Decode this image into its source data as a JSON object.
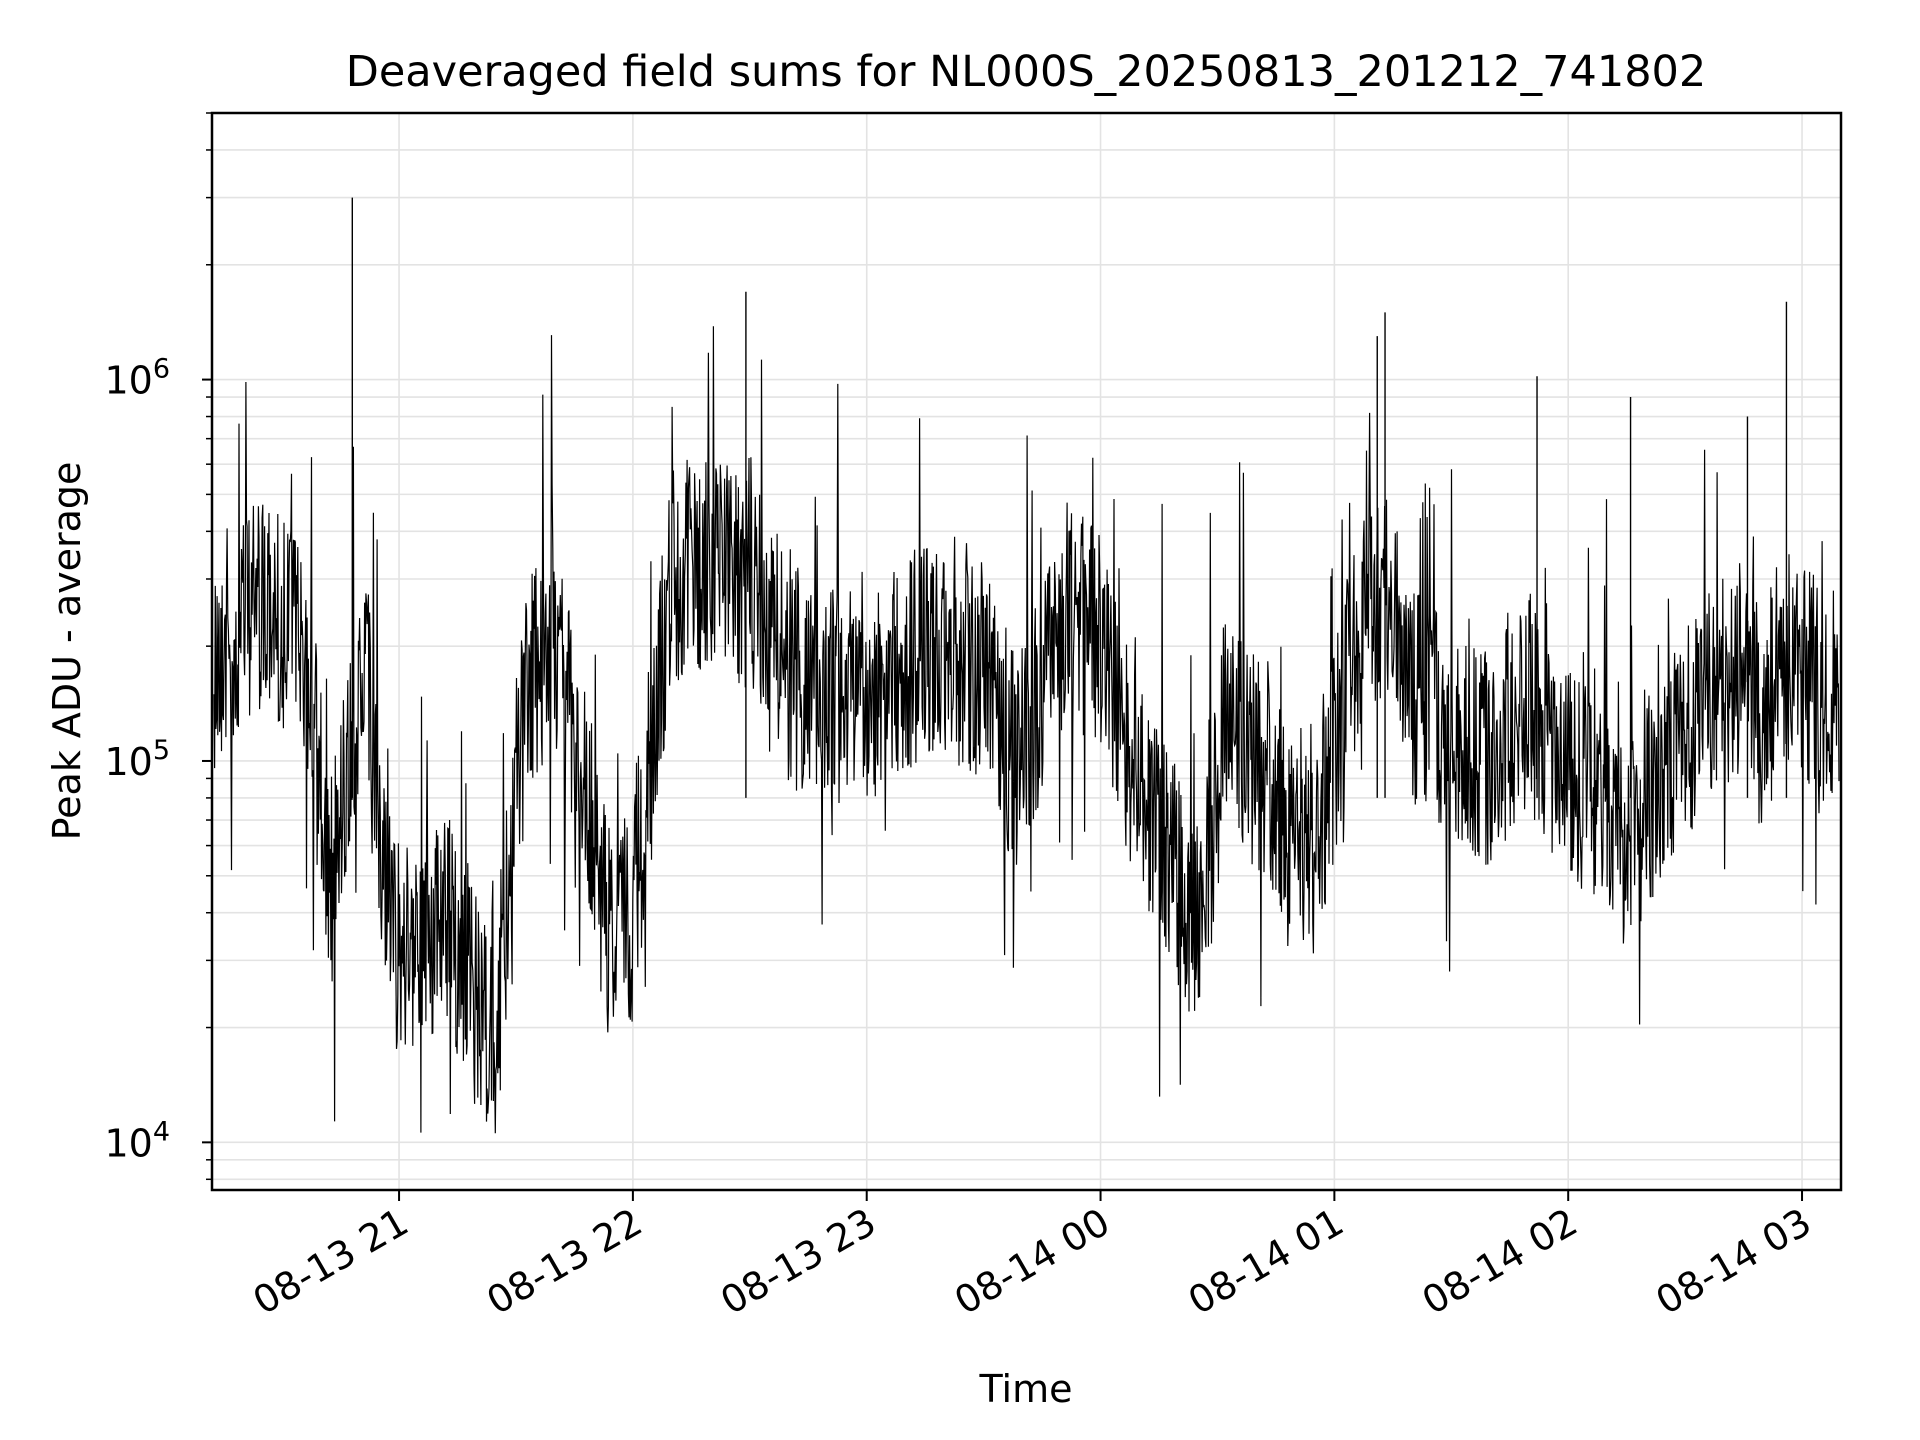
{
  "chart_data": {
    "type": "line",
    "title": "Deaveraged field sums for NL000S_20250813_201212_741802",
    "xlabel": "Time",
    "ylabel": "Peak ADU - average",
    "yscale": "log",
    "ylim": [
      7500,
      5000000
    ],
    "xlim": [
      "2025-08-13 20:12",
      "2025-08-14 03:10"
    ],
    "xticks": [
      "08-13 21",
      "08-13 22",
      "08-13 23",
      "08-14 00",
      "08-14 01",
      "08-14 02",
      "08-14 03"
    ],
    "yticks": [
      {
        "base": "10",
        "exp": "4",
        "value": 10000
      },
      {
        "base": "10",
        "exp": "5",
        "value": 100000
      },
      {
        "base": "10",
        "exp": "6",
        "value": 1000000
      }
    ],
    "grid": true,
    "line_color": "#000000",
    "grid_color": "#e3e3e3",
    "series": [
      {
        "x": [
          "2025-08-13 20:12",
          "2025-08-13 20:20",
          "2025-08-13 20:28",
          "2025-08-13 20:36",
          "2025-08-13 20:42",
          "2025-08-13 20:47",
          "2025-08-13 20:52",
          "2025-08-13 20:58",
          "2025-08-13 21:05",
          "2025-08-13 21:12",
          "2025-08-13 21:18",
          "2025-08-13 21:25",
          "2025-08-13 21:32",
          "2025-08-13 21:40",
          "2025-08-13 21:48",
          "2025-08-13 21:54",
          "2025-08-13 22:00",
          "2025-08-13 22:10",
          "2025-08-13 22:20",
          "2025-08-13 22:27",
          "2025-08-13 22:35",
          "2025-08-13 22:45",
          "2025-08-13 23:00",
          "2025-08-13 23:15",
          "2025-08-13 23:30",
          "2025-08-13 23:38",
          "2025-08-13 23:45",
          "2025-08-13 23:52",
          "2025-08-14 00:00",
          "2025-08-14 00:10",
          "2025-08-14 00:20",
          "2025-08-14 00:25",
          "2025-08-14 00:32",
          "2025-08-14 00:40",
          "2025-08-14 00:50",
          "2025-08-14 00:58",
          "2025-08-14 01:05",
          "2025-08-14 01:10",
          "2025-08-14 01:15",
          "2025-08-14 01:20",
          "2025-08-14 01:30",
          "2025-08-14 01:40",
          "2025-08-14 01:50",
          "2025-08-14 01:55",
          "2025-08-14 02:05",
          "2025-08-14 02:15",
          "2025-08-14 02:25",
          "2025-08-14 02:35",
          "2025-08-14 02:45",
          "2025-08-14 02:50",
          "2025-08-14 02:55",
          "2025-08-14 03:05",
          "2025-08-14 03:10"
        ],
        "y": [
          180000,
          250000,
          250000,
          200000,
          50000,
          100000,
          150000,
          35000,
          30000,
          40000,
          25000,
          20000,
          150000,
          200000,
          80000,
          35000,
          40000,
          300000,
          350000,
          300000,
          250000,
          150000,
          150000,
          200000,
          170000,
          100000,
          150000,
          250000,
          200000,
          80000,
          50000,
          35000,
          120000,
          100000,
          60000,
          80000,
          200000,
          250000,
          300000,
          150000,
          120000,
          100000,
          150000,
          100000,
          80000,
          60000,
          100000,
          150000,
          180000,
          120000,
          200000,
          150000,
          130000
        ]
      }
    ]
  }
}
